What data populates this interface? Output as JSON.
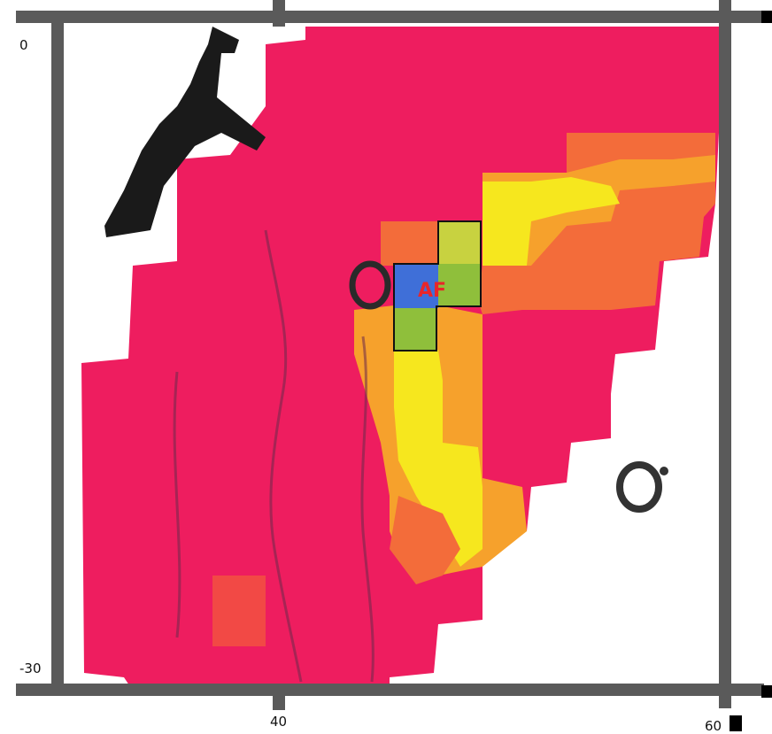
{
  "axis_labels": {
    "y_top": "0",
    "y_bottom": "-30",
    "x_left": "40",
    "x_right": "60"
  },
  "region_label": "AF",
  "colors": {
    "frame": "#4a4a4a",
    "grid_bar": "#3c3c3c",
    "heat_high": "#ee1d5f",
    "heat_mid": "#f36c3a",
    "heat_orange": "#f6a12c",
    "heat_yellow": "#f6e71e",
    "highlight_green": "#8fbf3b",
    "highlight_blue": "#3f6fd8",
    "outline": "#111111",
    "land_dark": "#1a1a1a"
  }
}
